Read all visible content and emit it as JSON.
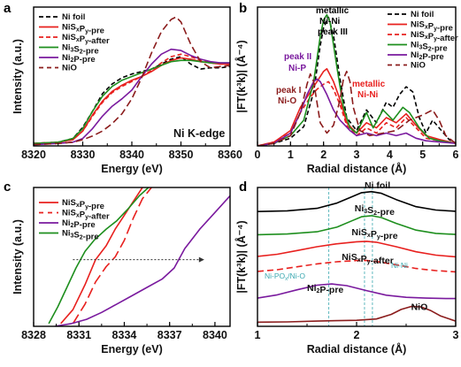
{
  "colors": {
    "black": "#000000",
    "red": "#e8201e",
    "green": "#1e8f1e",
    "purple": "#7a1a9e",
    "brown": "#8b1c1c",
    "teal": "#3aa8b0"
  },
  "chart_data": [
    {
      "panel": "a",
      "type": "line",
      "xlabel": "Energy (eV)",
      "ylabel": "Intensity (a.u.)",
      "xlim": [
        8320,
        8360
      ],
      "xticks": [
        "8320",
        "8330",
        "8340",
        "8350",
        "8360"
      ],
      "annotation": "Ni K-edge",
      "legend_placement": "top-left",
      "series": [
        {
          "name": "Ni foil",
          "color": "#000000",
          "dash": "5,3",
          "x": [
            8320,
            8325,
            8328,
            8330,
            8332,
            8334,
            8336,
            8338,
            8340,
            8342,
            8344,
            8346,
            8348,
            8350,
            8352,
            8354,
            8356,
            8358,
            8360
          ],
          "y": [
            0.02,
            0.03,
            0.06,
            0.15,
            0.28,
            0.42,
            0.5,
            0.55,
            0.58,
            0.6,
            0.62,
            0.66,
            0.7,
            0.72,
            0.66,
            0.62,
            0.63,
            0.63,
            0.64
          ]
        },
        {
          "name": "NiS_xP_y-pre",
          "color": "#e8201e",
          "dash": "",
          "x": [
            8320,
            8325,
            8328,
            8330,
            8332,
            8334,
            8336,
            8338,
            8340,
            8342,
            8344,
            8346,
            8348,
            8350,
            8352,
            8354,
            8356,
            8358,
            8360
          ],
          "y": [
            0.02,
            0.03,
            0.05,
            0.12,
            0.25,
            0.36,
            0.44,
            0.49,
            0.53,
            0.56,
            0.6,
            0.65,
            0.69,
            0.71,
            0.7,
            0.68,
            0.67,
            0.66,
            0.66
          ]
        },
        {
          "name": "NiS_xP_y-after",
          "color": "#e8201e",
          "dash": "5,3",
          "x": [
            8320,
            8325,
            8328,
            8330,
            8332,
            8334,
            8336,
            8338,
            8340,
            8342,
            8344,
            8346,
            8348,
            8350,
            8352,
            8354,
            8356,
            8358,
            8360
          ],
          "y": [
            0.02,
            0.03,
            0.05,
            0.12,
            0.24,
            0.35,
            0.43,
            0.48,
            0.52,
            0.56,
            0.61,
            0.67,
            0.72,
            0.74,
            0.72,
            0.69,
            0.67,
            0.66,
            0.66
          ]
        },
        {
          "name": "Ni_3S_2-pre",
          "color": "#1e8f1e",
          "dash": "",
          "x": [
            8320,
            8325,
            8328,
            8330,
            8332,
            8334,
            8336,
            8338,
            8340,
            8342,
            8344,
            8346,
            8348,
            8350,
            8352,
            8354,
            8356,
            8358,
            8360
          ],
          "y": [
            0.02,
            0.03,
            0.06,
            0.14,
            0.28,
            0.4,
            0.48,
            0.53,
            0.56,
            0.59,
            0.62,
            0.65,
            0.68,
            0.69,
            0.69,
            0.68,
            0.67,
            0.67,
            0.67
          ]
        },
        {
          "name": "Ni_2P-pre",
          "color": "#7a1a9e",
          "dash": "",
          "x": [
            8320,
            8325,
            8328,
            8330,
            8332,
            8334,
            8336,
            8338,
            8340,
            8342,
            8344,
            8346,
            8348,
            8350,
            8352,
            8354,
            8356,
            8358,
            8360
          ],
          "y": [
            0.01,
            0.02,
            0.03,
            0.06,
            0.14,
            0.24,
            0.32,
            0.38,
            0.45,
            0.56,
            0.66,
            0.74,
            0.78,
            0.77,
            0.73,
            0.7,
            0.68,
            0.67,
            0.67
          ]
        },
        {
          "name": "NiO",
          "color": "#8b1c1c",
          "dash": "8,4",
          "x": [
            8320,
            8325,
            8328,
            8330,
            8332,
            8334,
            8336,
            8338,
            8340,
            8342,
            8344,
            8346,
            8348,
            8349,
            8350,
            8352,
            8354,
            8356,
            8358,
            8360
          ],
          "y": [
            0.01,
            0.02,
            0.03,
            0.05,
            0.08,
            0.12,
            0.18,
            0.26,
            0.38,
            0.55,
            0.75,
            0.92,
            1.02,
            1.04,
            1.0,
            0.82,
            0.68,
            0.63,
            0.64,
            0.65
          ]
        }
      ]
    },
    {
      "panel": "b",
      "type": "line",
      "xlabel": "Radial distance (Å)",
      "ylabel": "|FT(k³k)| (Å⁻⁴)",
      "xlim": [
        0,
        6
      ],
      "xticks": [
        "0",
        "1",
        "2",
        "3",
        "4",
        "5",
        "6"
      ],
      "legend_placement": "top-right",
      "annotations": [
        "metallic",
        "Ni-Ni",
        "peak III",
        "peak II",
        "Ni-P",
        "peak I",
        "Ni-O",
        "metallic",
        "Ni-Ni"
      ],
      "series": [
        {
          "name": "Ni foil",
          "color": "#000000",
          "dash": "5,3",
          "x": [
            0,
            0.5,
            1.0,
            1.4,
            1.7,
            1.9,
            2.0,
            2.15,
            2.3,
            2.5,
            2.7,
            3.0,
            3.3,
            3.6,
            3.9,
            4.1,
            4.3,
            4.5,
            4.7,
            4.9,
            5.1,
            5.3,
            5.5,
            5.8,
            6.0
          ],
          "y": [
            0.0,
            0.02,
            0.06,
            0.15,
            0.42,
            0.78,
            0.92,
            1.0,
            0.86,
            0.52,
            0.22,
            0.12,
            0.28,
            0.18,
            0.34,
            0.3,
            0.4,
            0.46,
            0.42,
            0.22,
            0.1,
            0.2,
            0.14,
            0.05,
            0.02
          ]
        },
        {
          "name": "NiS_xP_y-pre",
          "color": "#e8201e",
          "dash": "",
          "x": [
            0,
            0.5,
            1.0,
            1.3,
            1.6,
            1.8,
            2.0,
            2.1,
            2.3,
            2.5,
            2.7,
            3.0,
            3.3,
            3.6,
            3.9,
            4.2,
            4.5,
            4.8,
            5.1,
            5.5,
            6.0
          ],
          "y": [
            0.0,
            0.03,
            0.12,
            0.3,
            0.42,
            0.5,
            0.58,
            0.6,
            0.5,
            0.36,
            0.18,
            0.1,
            0.18,
            0.14,
            0.22,
            0.18,
            0.25,
            0.16,
            0.08,
            0.05,
            0.02
          ]
        },
        {
          "name": "NiS_xP_y-after",
          "color": "#e8201e",
          "dash": "5,3",
          "x": [
            0,
            0.5,
            1.0,
            1.3,
            1.6,
            1.8,
            2.0,
            2.15,
            2.3,
            2.5,
            2.7,
            3.0,
            3.3,
            3.6,
            3.9,
            4.2,
            4.5,
            4.8,
            5.1,
            5.5,
            6.0
          ],
          "y": [
            0.0,
            0.03,
            0.1,
            0.26,
            0.38,
            0.44,
            0.48,
            0.5,
            0.44,
            0.32,
            0.16,
            0.08,
            0.14,
            0.1,
            0.18,
            0.14,
            0.22,
            0.14,
            0.06,
            0.04,
            0.02
          ]
        },
        {
          "name": "Ni_3S_2-pre",
          "color": "#1e8f1e",
          "dash": "",
          "x": [
            0,
            0.5,
            1.0,
            1.4,
            1.7,
            1.9,
            2.0,
            2.1,
            2.2,
            2.4,
            2.6,
            2.8,
            3.0,
            3.3,
            3.5,
            3.8,
            4.1,
            4.4,
            4.6,
            4.9,
            5.2,
            5.5,
            6.0
          ],
          "y": [
            0.0,
            0.02,
            0.08,
            0.2,
            0.5,
            0.85,
            0.98,
            1.02,
            0.96,
            0.62,
            0.3,
            0.14,
            0.1,
            0.26,
            0.14,
            0.28,
            0.2,
            0.3,
            0.26,
            0.14,
            0.06,
            0.04,
            0.02
          ]
        },
        {
          "name": "Ni_2P-pre",
          "color": "#7a1a9e",
          "dash": "",
          "x": [
            0,
            0.5,
            1.0,
            1.3,
            1.5,
            1.7,
            1.8,
            1.9,
            2.1,
            2.3,
            2.5,
            2.8,
            3.0,
            3.3,
            3.6,
            3.9,
            4.2,
            4.5,
            4.8,
            5.1,
            5.5,
            6.0
          ],
          "y": [
            0.0,
            0.02,
            0.1,
            0.26,
            0.4,
            0.5,
            0.52,
            0.5,
            0.4,
            0.28,
            0.2,
            0.12,
            0.08,
            0.1,
            0.08,
            0.1,
            0.08,
            0.1,
            0.06,
            0.04,
            0.03,
            0.02
          ]
        },
        {
          "name": "NiO",
          "color": "#8b1c1c",
          "dash": "8,4",
          "x": [
            0,
            0.5,
            1.0,
            1.3,
            1.5,
            1.6,
            1.7,
            1.8,
            1.9,
            2.1,
            2.3,
            2.5,
            2.6,
            2.7,
            2.8,
            2.9,
            3.1,
            3.4,
            3.8,
            4.2,
            4.6,
            5.0,
            5.3,
            5.5,
            5.7,
            6.0
          ],
          "y": [
            0.0,
            0.02,
            0.08,
            0.26,
            0.48,
            0.56,
            0.5,
            0.34,
            0.18,
            0.1,
            0.16,
            0.36,
            0.52,
            0.58,
            0.5,
            0.3,
            0.12,
            0.08,
            0.1,
            0.12,
            0.2,
            0.24,
            0.28,
            0.2,
            0.08,
            0.02
          ]
        }
      ]
    },
    {
      "panel": "c",
      "type": "line",
      "xlabel": "Energy (eV)",
      "ylabel": "Intensity (a.u.)",
      "xlim": [
        8328,
        8341
      ],
      "xticks": [
        "8328",
        "8331",
        "8334",
        "8337",
        "8340"
      ],
      "legend_placement": "top-left",
      "series": [
        {
          "name": "NiS_xP_y-pre",
          "color": "#e8201e",
          "dash": "",
          "x": [
            8329.8,
            8330.6,
            8331.4,
            8332.1,
            8332.8,
            8333.4,
            8334.0,
            8334.6,
            8335.2
          ],
          "y": [
            0.02,
            0.12,
            0.3,
            0.48,
            0.58,
            0.7,
            0.8,
            0.9,
            1.0
          ]
        },
        {
          "name": "NiS_xP_y-after",
          "color": "#e8201e",
          "dash": "12,5",
          "x": [
            8330.6,
            8331.4,
            8332.1,
            8332.8,
            8333.4,
            8334.0,
            8334.6,
            8335.2,
            8335.8
          ],
          "y": [
            0.02,
            0.16,
            0.32,
            0.43,
            0.5,
            0.62,
            0.78,
            0.92,
            1.0
          ]
        },
        {
          "name": "Ni_2P-pre",
          "color": "#7a1a9e",
          "dash": "",
          "x": [
            8329.4,
            8330.5,
            8331.5,
            8332.5,
            8333.5,
            8334.5,
            8335.5,
            8336.5,
            8337.3,
            8338.0,
            8339.0,
            8340.0,
            8341.0
          ],
          "y": [
            0.0,
            0.02,
            0.05,
            0.1,
            0.16,
            0.22,
            0.28,
            0.34,
            0.42,
            0.56,
            0.7,
            0.82,
            0.94
          ]
        },
        {
          "name": "Ni_3S_2-pre",
          "color": "#1e8f1e",
          "dash": "",
          "x": [
            8329.0,
            8329.6,
            8330.2,
            8330.8,
            8331.4,
            8332.0,
            8332.8,
            8333.5,
            8334.2,
            8335.0,
            8335.6
          ],
          "y": [
            0.02,
            0.14,
            0.28,
            0.42,
            0.54,
            0.62,
            0.7,
            0.76,
            0.84,
            0.94,
            1.0
          ]
        }
      ],
      "arrow": {
        "from": 8330.6,
        "to": 8339.0
      }
    },
    {
      "panel": "d",
      "type": "line",
      "xlabel": "Radial distance (Å)",
      "ylabel": "|FT(k³k)| (Å⁻⁴)",
      "xlim": [
        1,
        3
      ],
      "xticks": [
        "1",
        "2",
        "3"
      ],
      "reference_lines": [
        1.72,
        2.08,
        2.16
      ],
      "annotations": [
        "Ni-PO",
        "x",
        "/Ni-O",
        "Ni-Ni"
      ],
      "series": [
        {
          "name": "Ni foil",
          "color": "#000000",
          "dash": "",
          "offset": 5.3,
          "x": [
            1.0,
            1.3,
            1.6,
            1.8,
            1.95,
            2.05,
            2.15,
            2.25,
            2.4,
            2.6,
            2.8,
            3.0
          ],
          "y": [
            0.05,
            0.08,
            0.2,
            0.45,
            0.75,
            0.95,
            1.0,
            0.92,
            0.62,
            0.28,
            0.12,
            0.06
          ]
        },
        {
          "name": "Ni_3S_2-pre",
          "color": "#1e8f1e",
          "dash": "",
          "offset": 4.2,
          "x": [
            1.0,
            1.3,
            1.6,
            1.8,
            1.95,
            2.05,
            2.15,
            2.25,
            2.4,
            2.6,
            2.8,
            3.0
          ],
          "y": [
            0.04,
            0.07,
            0.18,
            0.4,
            0.7,
            0.9,
            0.95,
            0.86,
            0.58,
            0.26,
            0.1,
            0.05
          ]
        },
        {
          "name": "NiS_xP_y-pre",
          "color": "#e8201e",
          "dash": "",
          "offset": 3.1,
          "x": [
            1.0,
            1.2,
            1.4,
            1.6,
            1.8,
            2.0,
            2.1,
            2.2,
            2.4,
            2.6,
            2.8,
            3.0
          ],
          "y": [
            0.1,
            0.2,
            0.38,
            0.56,
            0.7,
            0.8,
            0.82,
            0.78,
            0.56,
            0.32,
            0.16,
            0.08
          ]
        },
        {
          "name": "NiS_xP_y-after",
          "color": "#e8201e",
          "dash": "7,4",
          "offset": 2.4,
          "x": [
            1.0,
            1.2,
            1.4,
            1.6,
            1.8,
            2.0,
            2.1,
            2.2,
            2.4,
            2.6,
            2.8,
            3.0
          ],
          "y": [
            0.08,
            0.16,
            0.3,
            0.44,
            0.54,
            0.6,
            0.6,
            0.56,
            0.4,
            0.22,
            0.12,
            0.06
          ]
        },
        {
          "name": "Ni_2P-pre",
          "color": "#7a1a9e",
          "dash": "",
          "offset": 1.1,
          "x": [
            1.0,
            1.2,
            1.4,
            1.6,
            1.75,
            1.9,
            2.1,
            2.3,
            2.5,
            2.7,
            2.9,
            3.0
          ],
          "y": [
            0.1,
            0.26,
            0.5,
            0.72,
            0.78,
            0.7,
            0.46,
            0.24,
            0.14,
            0.1,
            0.08,
            0.08
          ]
        },
        {
          "name": "NiO",
          "color": "#8b1c1c",
          "dash": "",
          "offset": 0.0,
          "x": [
            1.0,
            1.3,
            1.6,
            1.8,
            2.0,
            2.2,
            2.35,
            2.45,
            2.55,
            2.65,
            2.75,
            2.85,
            3.0
          ],
          "y": [
            0.05,
            0.06,
            0.1,
            0.12,
            0.14,
            0.2,
            0.42,
            0.66,
            0.8,
            0.78,
            0.6,
            0.34,
            0.1
          ]
        }
      ]
    }
  ],
  "panels": {
    "a": {
      "label": "a",
      "annotation": "Ni K-edge"
    },
    "b": {
      "label": "b",
      "ann_metallic_top": "metallic",
      "ann_nini_top": "Ni-Ni",
      "ann_peak3": "peak III",
      "ann_peak2": "peak II",
      "ann_nip": "Ni-P",
      "ann_peak1": "peak I",
      "ann_nio": "Ni-O",
      "ann_metallic_red": "metallic",
      "ann_nini_red": "Ni-Ni"
    },
    "c": {
      "label": "c"
    },
    "d": {
      "label": "d",
      "ann_nipo_a": "Ni-PO",
      "ann_nipo_sub": "x",
      "ann_nipo_b": "/Ni-O",
      "ann_nini": "Ni-Ni"
    }
  }
}
